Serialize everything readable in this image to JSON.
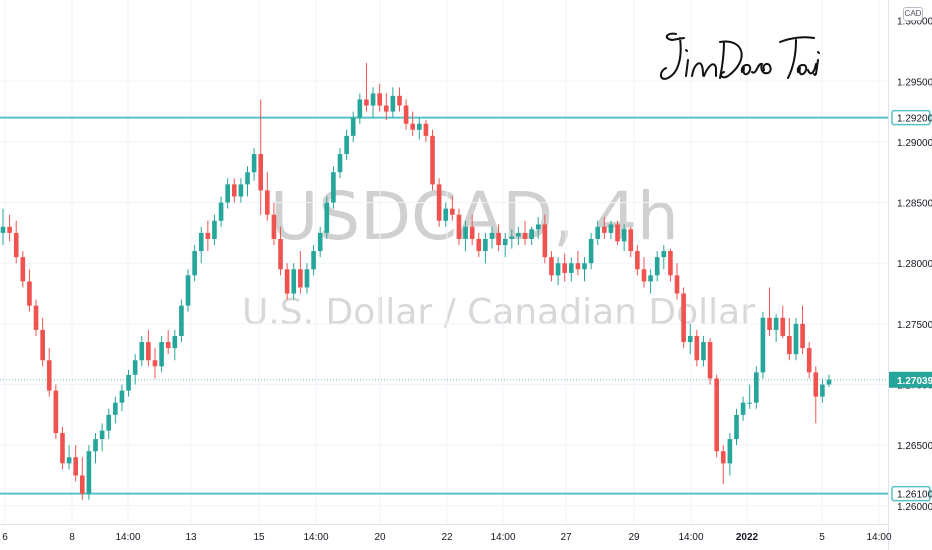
{
  "symbol_watermark": "USDCAD, 4h",
  "description_watermark": "U.S. Dollar / Canadian Dollar",
  "signature_text": "JinDaoTai",
  "currency_badge": "CAD",
  "colors": {
    "up": "#26a69a",
    "down": "#ef5350",
    "level_line": "#56c2c9",
    "grid": "#f0f3fa",
    "axis_text": "#131722"
  },
  "chart_data": {
    "type": "candlestick",
    "timeframe": "4h",
    "y_range": [
      1.2585,
      1.3017
    ],
    "y_ticks": [
      1.26,
      1.265,
      1.27,
      1.275,
      1.28,
      1.285,
      1.29,
      1.295
    ],
    "y_tick_labels": [
      "1.26000",
      "1.26500",
      "1.27000",
      "1.27500",
      "1.28000",
      "1.28500",
      "1.29000",
      "1.29500"
    ],
    "top_partial_tick": "1.30000",
    "x_ticks": [
      "6",
      "8",
      "14:00",
      "13",
      "15",
      "14:00",
      "20",
      "22",
      "14:00",
      "27",
      "29",
      "14:00",
      "2022",
      "5",
      "14:00"
    ],
    "horizontal_levels": [
      {
        "price": 1.292,
        "label": "1.29200"
      },
      {
        "price": 1.261,
        "label": "1.26100"
      }
    ],
    "last_price": {
      "price": 1.27039,
      "label": "1.27039"
    },
    "candles": [
      [
        1.2825,
        1.2845,
        1.2815,
        1.283
      ],
      [
        1.283,
        1.284,
        1.2818,
        1.2825
      ],
      [
        1.2825,
        1.2835,
        1.28,
        1.2805
      ],
      [
        1.2805,
        1.281,
        1.278,
        1.2785
      ],
      [
        1.2785,
        1.2795,
        1.276,
        1.2765
      ],
      [
        1.2765,
        1.277,
        1.274,
        1.2745
      ],
      [
        1.2745,
        1.2755,
        1.2715,
        1.272
      ],
      [
        1.272,
        1.273,
        1.269,
        1.2695
      ],
      [
        1.2695,
        1.27,
        1.2655,
        1.266
      ],
      [
        1.266,
        1.2665,
        1.263,
        1.2635
      ],
      [
        1.2635,
        1.265,
        1.263,
        1.264
      ],
      [
        1.264,
        1.265,
        1.262,
        1.2625
      ],
      [
        1.2625,
        1.264,
        1.2605,
        1.261
      ],
      [
        1.261,
        1.265,
        1.2605,
        1.2645
      ],
      [
        1.2645,
        1.266,
        1.2635,
        1.2655
      ],
      [
        1.2655,
        1.2668,
        1.2645,
        1.2662
      ],
      [
        1.2662,
        1.268,
        1.2655,
        1.2675
      ],
      [
        1.2675,
        1.269,
        1.2668,
        1.2685
      ],
      [
        1.2685,
        1.27,
        1.2678,
        1.2695
      ],
      [
        1.2695,
        1.2712,
        1.269,
        1.2708
      ],
      [
        1.2708,
        1.2725,
        1.27,
        1.272
      ],
      [
        1.272,
        1.274,
        1.2715,
        1.2735
      ],
      [
        1.2735,
        1.2745,
        1.2715,
        1.272
      ],
      [
        1.272,
        1.273,
        1.2705,
        1.2715
      ],
      [
        1.2715,
        1.274,
        1.271,
        1.2735
      ],
      [
        1.2735,
        1.2745,
        1.2725,
        1.273
      ],
      [
        1.273,
        1.2745,
        1.272,
        1.274
      ],
      [
        1.274,
        1.277,
        1.2735,
        1.2765
      ],
      [
        1.2765,
        1.2795,
        1.276,
        1.279
      ],
      [
        1.279,
        1.2815,
        1.2785,
        1.281
      ],
      [
        1.281,
        1.283,
        1.28,
        1.2825
      ],
      [
        1.2825,
        1.2835,
        1.281,
        1.282
      ],
      [
        1.282,
        1.284,
        1.2815,
        1.2835
      ],
      [
        1.2835,
        1.2855,
        1.283,
        1.285
      ],
      [
        1.285,
        1.287,
        1.2845,
        1.2865
      ],
      [
        1.2865,
        1.287,
        1.285,
        1.2855
      ],
      [
        1.2855,
        1.287,
        1.285,
        1.2865
      ],
      [
        1.2865,
        1.288,
        1.2855,
        1.2875
      ],
      [
        1.2875,
        1.2895,
        1.2868,
        1.289
      ],
      [
        1.289,
        1.2935,
        1.284,
        1.286
      ],
      [
        1.286,
        1.2875,
        1.2835,
        1.284
      ],
      [
        1.284,
        1.285,
        1.2815,
        1.282
      ],
      [
        1.282,
        1.283,
        1.279,
        1.2795
      ],
      [
        1.2795,
        1.28,
        1.277,
        1.2775
      ],
      [
        1.2775,
        1.28,
        1.277,
        1.2795
      ],
      [
        1.2795,
        1.281,
        1.2775,
        1.278
      ],
      [
        1.278,
        1.28,
        1.2775,
        1.2795
      ],
      [
        1.2795,
        1.2815,
        1.279,
        1.281
      ],
      [
        1.281,
        1.283,
        1.2805,
        1.2825
      ],
      [
        1.2825,
        1.2855,
        1.282,
        1.285
      ],
      [
        1.285,
        1.288,
        1.2845,
        1.2875
      ],
      [
        1.2875,
        1.2895,
        1.287,
        1.289
      ],
      [
        1.289,
        1.291,
        1.2885,
        1.2905
      ],
      [
        1.2905,
        1.2925,
        1.29,
        1.292
      ],
      [
        1.292,
        1.294,
        1.2915,
        1.2935
      ],
      [
        1.2935,
        1.2965,
        1.2925,
        1.293
      ],
      [
        1.293,
        1.2945,
        1.292,
        1.294
      ],
      [
        1.294,
        1.2948,
        1.2925,
        1.293
      ],
      [
        1.293,
        1.294,
        1.2918,
        1.2925
      ],
      [
        1.2925,
        1.2945,
        1.292,
        1.2938
      ],
      [
        1.2938,
        1.2945,
        1.2925,
        1.293
      ],
      [
        1.293,
        1.2935,
        1.291,
        1.2915
      ],
      [
        1.2915,
        1.2925,
        1.2905,
        1.291
      ],
      [
        1.291,
        1.292,
        1.2902,
        1.2915
      ],
      [
        1.2915,
        1.2918,
        1.29,
        1.2905
      ],
      [
        1.2905,
        1.291,
        1.286,
        1.2865
      ],
      [
        1.2865,
        1.287,
        1.283,
        1.2835
      ],
      [
        1.2835,
        1.285,
        1.283,
        1.2845
      ],
      [
        1.2845,
        1.2855,
        1.2835,
        1.284
      ],
      [
        1.284,
        1.2845,
        1.2815,
        1.282
      ],
      [
        1.282,
        1.2835,
        1.281,
        1.283
      ],
      [
        1.283,
        1.284,
        1.2815,
        1.282
      ],
      [
        1.282,
        1.2825,
        1.2805,
        1.281
      ],
      [
        1.281,
        1.2825,
        1.28,
        1.282
      ],
      [
        1.282,
        1.283,
        1.2812,
        1.2825
      ],
      [
        1.2825,
        1.2832,
        1.281,
        1.2815
      ],
      [
        1.2815,
        1.2825,
        1.2805,
        1.282
      ],
      [
        1.282,
        1.2828,
        1.2812,
        1.2822
      ],
      [
        1.2822,
        1.283,
        1.2815,
        1.2825
      ],
      [
        1.2825,
        1.2835,
        1.2815,
        1.282
      ],
      [
        1.282,
        1.283,
        1.2815,
        1.2828
      ],
      [
        1.2828,
        1.2838,
        1.282,
        1.2832
      ],
      [
        1.2832,
        1.284,
        1.28,
        1.2805
      ],
      [
        1.2805,
        1.281,
        1.2785,
        1.279
      ],
      [
        1.279,
        1.2805,
        1.2782,
        1.28
      ],
      [
        1.28,
        1.2808,
        1.2785,
        1.2792
      ],
      [
        1.2792,
        1.2805,
        1.2785,
        1.28
      ],
      [
        1.28,
        1.281,
        1.279,
        1.2795
      ],
      [
        1.2795,
        1.2805,
        1.2785,
        1.28
      ],
      [
        1.28,
        1.2825,
        1.2795,
        1.282
      ],
      [
        1.282,
        1.2835,
        1.2815,
        1.283
      ],
      [
        1.283,
        1.2838,
        1.282,
        1.2825
      ],
      [
        1.2825,
        1.2835,
        1.282,
        1.2832
      ],
      [
        1.2832,
        1.2835,
        1.2815,
        1.2818
      ],
      [
        1.2818,
        1.2832,
        1.281,
        1.2828
      ],
      [
        1.2828,
        1.283,
        1.2805,
        1.281
      ],
      [
        1.281,
        1.2815,
        1.279,
        1.2795
      ],
      [
        1.2795,
        1.2805,
        1.278,
        1.2785
      ],
      [
        1.2785,
        1.2795,
        1.2775,
        1.279
      ],
      [
        1.279,
        1.281,
        1.2785,
        1.2805
      ],
      [
        1.2805,
        1.2815,
        1.2795,
        1.281
      ],
      [
        1.281,
        1.2812,
        1.2785,
        1.279
      ],
      [
        1.279,
        1.28,
        1.277,
        1.2775
      ],
      [
        1.2775,
        1.278,
        1.273,
        1.2735
      ],
      [
        1.2735,
        1.275,
        1.2725,
        1.274
      ],
      [
        1.274,
        1.2745,
        1.2715,
        1.272
      ],
      [
        1.272,
        1.274,
        1.2715,
        1.2735
      ],
      [
        1.2735,
        1.2738,
        1.27,
        1.2705
      ],
      [
        1.2705,
        1.2708,
        1.264,
        1.2645
      ],
      [
        1.2645,
        1.265,
        1.2618,
        1.2635
      ],
      [
        1.2635,
        1.266,
        1.2625,
        1.2655
      ],
      [
        1.2655,
        1.268,
        1.265,
        1.2675
      ],
      [
        1.2675,
        1.269,
        1.267,
        1.2685
      ],
      [
        1.2685,
        1.27,
        1.268,
        1.2685
      ],
      [
        1.2685,
        1.2715,
        1.268,
        1.271
      ],
      [
        1.271,
        1.276,
        1.2705,
        1.2755
      ],
      [
        1.2755,
        1.278,
        1.274,
        1.2745
      ],
      [
        1.2745,
        1.2758,
        1.2735,
        1.2755
      ],
      [
        1.2755,
        1.2765,
        1.2738,
        1.274
      ],
      [
        1.274,
        1.2755,
        1.272,
        1.2725
      ],
      [
        1.2725,
        1.2755,
        1.272,
        1.275
      ],
      [
        1.275,
        1.2765,
        1.2725,
        1.273
      ],
      [
        1.273,
        1.2735,
        1.2705,
        1.271
      ],
      [
        1.271,
        1.2715,
        1.2668,
        1.269
      ],
      [
        1.269,
        1.2705,
        1.2685,
        1.27
      ],
      [
        1.27,
        1.2708,
        1.2698,
        1.2704
      ]
    ]
  }
}
